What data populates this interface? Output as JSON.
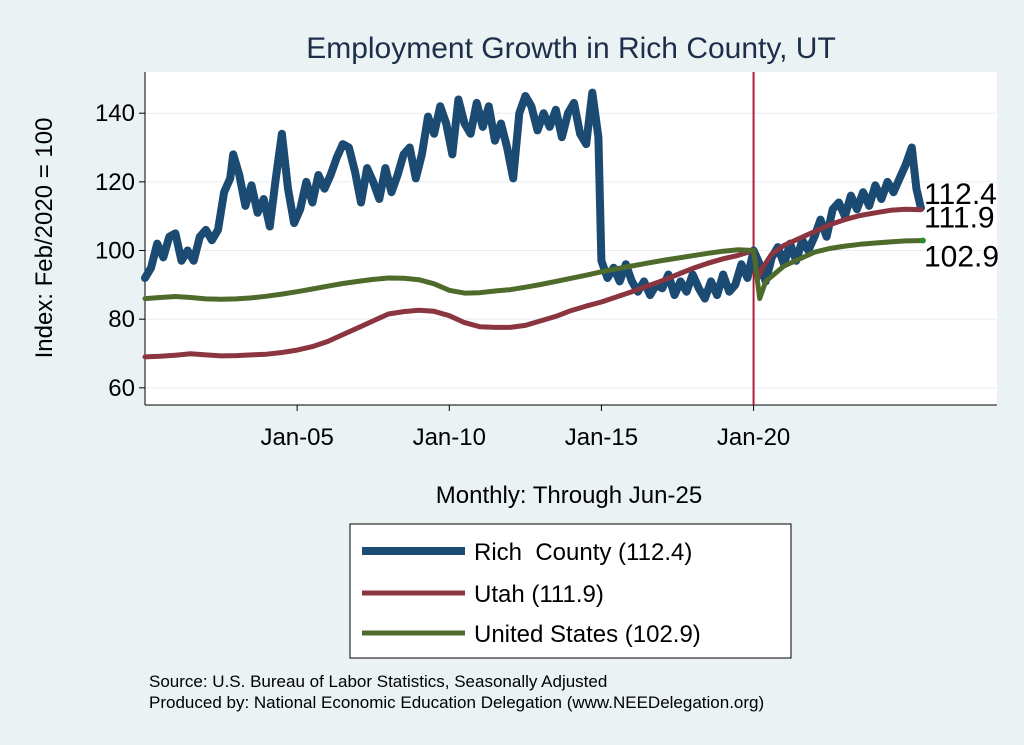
{
  "chart_data": {
    "type": "line",
    "title": "Employment Growth in Rich  County, UT",
    "xlabel": "Monthly: Through Jun-25",
    "ylabel": "Index: Feb/2020 = 100",
    "xlim": [
      2000.0,
      2028.0
    ],
    "ylim": [
      55,
      152
    ],
    "x_ticks": [
      2005,
      2010,
      2015,
      2020
    ],
    "x_tick_labels": [
      "Jan-05",
      "Jan-10",
      "Jan-15",
      "Jan-20"
    ],
    "y_ticks": [
      60,
      80,
      100,
      120,
      140
    ],
    "vertical_line": 2020.0,
    "end_labels": [
      "112.4",
      "111.9",
      "102.9"
    ],
    "series": [
      {
        "name": "Rich  County (112.4)",
        "color": "#1b4a72",
        "final": 112.4,
        "points": [
          [
            2000.0,
            92
          ],
          [
            2000.2,
            95
          ],
          [
            2000.4,
            102
          ],
          [
            2000.6,
            98
          ],
          [
            2000.8,
            104
          ],
          [
            2001.0,
            105
          ],
          [
            2001.2,
            97
          ],
          [
            2001.4,
            100
          ],
          [
            2001.6,
            97
          ],
          [
            2001.8,
            104
          ],
          [
            2002.0,
            106
          ],
          [
            2002.2,
            103
          ],
          [
            2002.4,
            106
          ],
          [
            2002.6,
            117
          ],
          [
            2002.8,
            121
          ],
          [
            2002.9,
            128
          ],
          [
            2003.1,
            122
          ],
          [
            2003.3,
            113
          ],
          [
            2003.5,
            119
          ],
          [
            2003.7,
            111
          ],
          [
            2003.9,
            115
          ],
          [
            2004.1,
            107
          ],
          [
            2004.3,
            121
          ],
          [
            2004.5,
            134
          ],
          [
            2004.7,
            118
          ],
          [
            2004.9,
            108
          ],
          [
            2005.1,
            112
          ],
          [
            2005.3,
            120
          ],
          [
            2005.5,
            114
          ],
          [
            2005.7,
            122
          ],
          [
            2005.9,
            118
          ],
          [
            2006.1,
            122
          ],
          [
            2006.3,
            127
          ],
          [
            2006.5,
            131
          ],
          [
            2006.7,
            130
          ],
          [
            2006.9,
            123
          ],
          [
            2007.1,
            114
          ],
          [
            2007.3,
            124
          ],
          [
            2007.5,
            120
          ],
          [
            2007.7,
            115
          ],
          [
            2007.9,
            124
          ],
          [
            2008.1,
            117
          ],
          [
            2008.3,
            122
          ],
          [
            2008.5,
            128
          ],
          [
            2008.7,
            130
          ],
          [
            2008.9,
            121
          ],
          [
            2009.1,
            128
          ],
          [
            2009.3,
            139
          ],
          [
            2009.5,
            134
          ],
          [
            2009.7,
            142
          ],
          [
            2009.9,
            137
          ],
          [
            2010.1,
            128
          ],
          [
            2010.3,
            144
          ],
          [
            2010.5,
            137
          ],
          [
            2010.7,
            134
          ],
          [
            2010.9,
            143
          ],
          [
            2011.1,
            136
          ],
          [
            2011.3,
            142
          ],
          [
            2011.5,
            132
          ],
          [
            2011.7,
            137
          ],
          [
            2011.9,
            130
          ],
          [
            2012.1,
            121
          ],
          [
            2012.3,
            140
          ],
          [
            2012.5,
            145
          ],
          [
            2012.7,
            142
          ],
          [
            2012.9,
            135
          ],
          [
            2013.1,
            140
          ],
          [
            2013.3,
            136
          ],
          [
            2013.5,
            141
          ],
          [
            2013.7,
            133
          ],
          [
            2013.9,
            140
          ],
          [
            2014.1,
            143
          ],
          [
            2014.3,
            134
          ],
          [
            2014.5,
            131
          ],
          [
            2014.7,
            146
          ],
          [
            2014.9,
            133
          ],
          [
            2015.0,
            97
          ],
          [
            2015.2,
            92
          ],
          [
            2015.4,
            95
          ],
          [
            2015.6,
            91
          ],
          [
            2015.8,
            96
          ],
          [
            2016.0,
            91
          ],
          [
            2016.2,
            88
          ],
          [
            2016.4,
            91
          ],
          [
            2016.6,
            87
          ],
          [
            2016.8,
            90
          ],
          [
            2017.0,
            89
          ],
          [
            2017.2,
            93
          ],
          [
            2017.4,
            87
          ],
          [
            2017.6,
            91
          ],
          [
            2017.8,
            88
          ],
          [
            2018.0,
            93
          ],
          [
            2018.2,
            89
          ],
          [
            2018.4,
            86
          ],
          [
            2018.6,
            91
          ],
          [
            2018.8,
            87
          ],
          [
            2019.0,
            93
          ],
          [
            2019.2,
            88
          ],
          [
            2019.4,
            90
          ],
          [
            2019.6,
            96
          ],
          [
            2019.8,
            92
          ],
          [
            2020.0,
            100
          ],
          [
            2020.2,
            96
          ],
          [
            2020.4,
            91
          ],
          [
            2020.6,
            98
          ],
          [
            2020.8,
            101
          ],
          [
            2021.0,
            96
          ],
          [
            2021.2,
            102
          ],
          [
            2021.4,
            97
          ],
          [
            2021.6,
            103
          ],
          [
            2021.8,
            100
          ],
          [
            2022.0,
            104
          ],
          [
            2022.2,
            109
          ],
          [
            2022.4,
            104
          ],
          [
            2022.6,
            112
          ],
          [
            2022.8,
            114
          ],
          [
            2023.0,
            110
          ],
          [
            2023.2,
            116
          ],
          [
            2023.4,
            112
          ],
          [
            2023.6,
            117
          ],
          [
            2023.8,
            113
          ],
          [
            2024.0,
            119
          ],
          [
            2024.2,
            115
          ],
          [
            2024.4,
            120
          ],
          [
            2024.6,
            117
          ],
          [
            2024.8,
            121
          ],
          [
            2025.0,
            125
          ],
          [
            2025.2,
            130
          ],
          [
            2025.35,
            118
          ],
          [
            2025.5,
            112.4
          ]
        ]
      },
      {
        "name": "Utah (111.9)",
        "color": "#8a3540",
        "final": 111.9,
        "points": [
          [
            2000.0,
            69
          ],
          [
            2000.5,
            69.2
          ],
          [
            2001.0,
            69.5
          ],
          [
            2001.5,
            69.9
          ],
          [
            2002.0,
            69.6
          ],
          [
            2002.5,
            69.3
          ],
          [
            2003.0,
            69.4
          ],
          [
            2003.5,
            69.6
          ],
          [
            2004.0,
            69.8
          ],
          [
            2004.5,
            70.3
          ],
          [
            2005.0,
            71
          ],
          [
            2005.5,
            72
          ],
          [
            2006.0,
            73.5
          ],
          [
            2006.5,
            75.5
          ],
          [
            2007.0,
            77.5
          ],
          [
            2007.5,
            79.5
          ],
          [
            2008.0,
            81.5
          ],
          [
            2008.5,
            82.2
          ],
          [
            2009.0,
            82.6
          ],
          [
            2009.5,
            82.3
          ],
          [
            2010.0,
            81
          ],
          [
            2010.5,
            79
          ],
          [
            2011.0,
            77.8
          ],
          [
            2011.5,
            77.6
          ],
          [
            2012.0,
            77.6
          ],
          [
            2012.5,
            78.2
          ],
          [
            2013.0,
            79.5
          ],
          [
            2013.5,
            80.8
          ],
          [
            2014.0,
            82.5
          ],
          [
            2014.5,
            83.8
          ],
          [
            2015.0,
            85
          ],
          [
            2015.5,
            86.5
          ],
          [
            2016.0,
            88
          ],
          [
            2016.5,
            89.6
          ],
          [
            2017.0,
            91.2
          ],
          [
            2017.5,
            93
          ],
          [
            2018.0,
            94.8
          ],
          [
            2018.5,
            96.3
          ],
          [
            2019.0,
            97.6
          ],
          [
            2019.5,
            98.6
          ],
          [
            2020.0,
            100
          ],
          [
            2020.15,
            92
          ],
          [
            2020.3,
            95
          ],
          [
            2020.6,
            99
          ],
          [
            2021.0,
            101.5
          ],
          [
            2021.5,
            103.5
          ],
          [
            2022.0,
            105.5
          ],
          [
            2022.5,
            107.5
          ],
          [
            2023.0,
            109
          ],
          [
            2023.5,
            110.2
          ],
          [
            2024.0,
            111
          ],
          [
            2024.5,
            111.7
          ],
          [
            2025.0,
            112
          ],
          [
            2025.5,
            111.9
          ]
        ]
      },
      {
        "name": "United States (102.9)",
        "color": "#4e6b2c",
        "final": 102.9,
        "points": [
          [
            2000.0,
            86
          ],
          [
            2000.5,
            86.3
          ],
          [
            2001.0,
            86.6
          ],
          [
            2001.5,
            86.3
          ],
          [
            2002.0,
            85.9
          ],
          [
            2002.5,
            85.8
          ],
          [
            2003.0,
            85.9
          ],
          [
            2003.5,
            86.2
          ],
          [
            2004.0,
            86.7
          ],
          [
            2004.5,
            87.3
          ],
          [
            2005.0,
            88
          ],
          [
            2005.5,
            88.8
          ],
          [
            2006.0,
            89.6
          ],
          [
            2006.5,
            90.4
          ],
          [
            2007.0,
            91
          ],
          [
            2007.5,
            91.6
          ],
          [
            2008.0,
            92
          ],
          [
            2008.5,
            91.9
          ],
          [
            2009.0,
            91.5
          ],
          [
            2009.5,
            90.3
          ],
          [
            2010.0,
            88.4
          ],
          [
            2010.5,
            87.6
          ],
          [
            2011.0,
            87.7
          ],
          [
            2011.5,
            88.2
          ],
          [
            2012.0,
            88.6
          ],
          [
            2012.5,
            89.3
          ],
          [
            2013.0,
            90.1
          ],
          [
            2013.5,
            91
          ],
          [
            2014.0,
            91.9
          ],
          [
            2014.5,
            92.8
          ],
          [
            2015.0,
            93.8
          ],
          [
            2015.5,
            94.7
          ],
          [
            2016.0,
            95.5
          ],
          [
            2016.5,
            96.3
          ],
          [
            2017.0,
            97.1
          ],
          [
            2017.5,
            97.8
          ],
          [
            2018.0,
            98.5
          ],
          [
            2018.5,
            99.2
          ],
          [
            2019.0,
            99.8
          ],
          [
            2019.5,
            100.2
          ],
          [
            2020.0,
            100
          ],
          [
            2020.2,
            86
          ],
          [
            2020.4,
            91
          ],
          [
            2020.8,
            94
          ],
          [
            2021.0,
            95.5
          ],
          [
            2021.5,
            97.5
          ],
          [
            2022.0,
            99.5
          ],
          [
            2022.5,
            100.6
          ],
          [
            2023.0,
            101.3
          ],
          [
            2023.5,
            101.8
          ],
          [
            2024.0,
            102.2
          ],
          [
            2024.5,
            102.5
          ],
          [
            2025.0,
            102.8
          ],
          [
            2025.5,
            102.9
          ]
        ]
      }
    ]
  },
  "source_lines": [
    "Source: U.S. Bureau of Labor Statistics, Seasonally Adjusted",
    "Produced by: National Economic Education Delegation (www.NEEDelegation.org)"
  ]
}
